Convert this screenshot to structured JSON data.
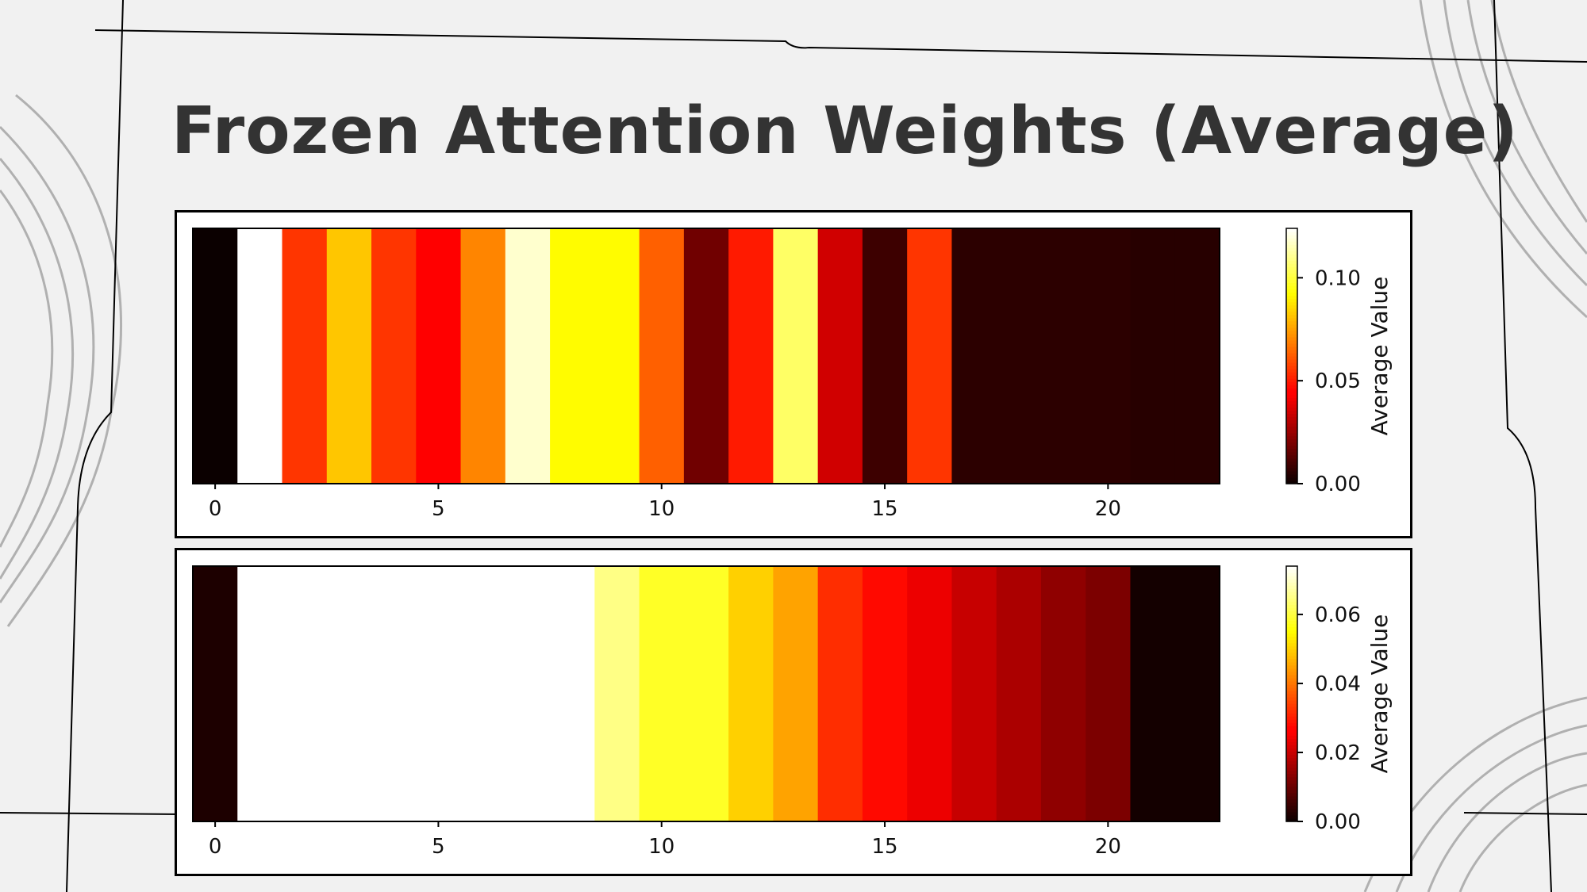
{
  "title": "Frozen Attention Weights (Average)",
  "chart_data": [
    {
      "type": "heatmap",
      "title": "",
      "x": [
        0,
        1,
        2,
        3,
        4,
        5,
        6,
        7,
        8,
        9,
        10,
        11,
        12,
        13,
        14,
        15,
        16,
        17,
        18,
        19,
        20,
        21,
        22
      ],
      "values": [
        0.0,
        0.13,
        0.055,
        0.082,
        0.055,
        0.045,
        0.07,
        0.118,
        0.092,
        0.092,
        0.063,
        0.018,
        0.05,
        0.105,
        0.035,
        0.009,
        0.055,
        0.006,
        0.006,
        0.006,
        0.006,
        0.005,
        0.005
      ],
      "xlim": [
        -0.5,
        22.5
      ],
      "x_ticks": [
        "0",
        "5",
        "10",
        "15",
        "20"
      ],
      "colormap": "hot",
      "color_range": [
        0.0,
        0.124
      ],
      "colorbar": {
        "label": "Average Value",
        "ticks": [
          "0.00",
          "0.05",
          "0.10"
        ]
      }
    },
    {
      "type": "heatmap",
      "title": "",
      "x": [
        0,
        1,
        2,
        3,
        4,
        5,
        6,
        7,
        8,
        9,
        10,
        11,
        12,
        13,
        14,
        15,
        16,
        17,
        18,
        19,
        20,
        21,
        22
      ],
      "values": [
        0.002,
        0.09,
        0.09,
        0.09,
        0.09,
        0.09,
        0.09,
        0.09,
        0.09,
        0.065,
        0.058,
        0.058,
        0.05,
        0.045,
        0.032,
        0.028,
        0.024,
        0.02,
        0.017,
        0.014,
        0.012,
        0.001,
        0.001
      ],
      "xlim": [
        -0.5,
        22.5
      ],
      "x_ticks": [
        "0",
        "5",
        "10",
        "15",
        "20"
      ],
      "colormap": "hot",
      "color_range": [
        0.0,
        0.074
      ],
      "colorbar": {
        "label": "Average Value",
        "ticks": [
          "0.00",
          "0.02",
          "0.04",
          "0.06"
        ]
      }
    }
  ]
}
